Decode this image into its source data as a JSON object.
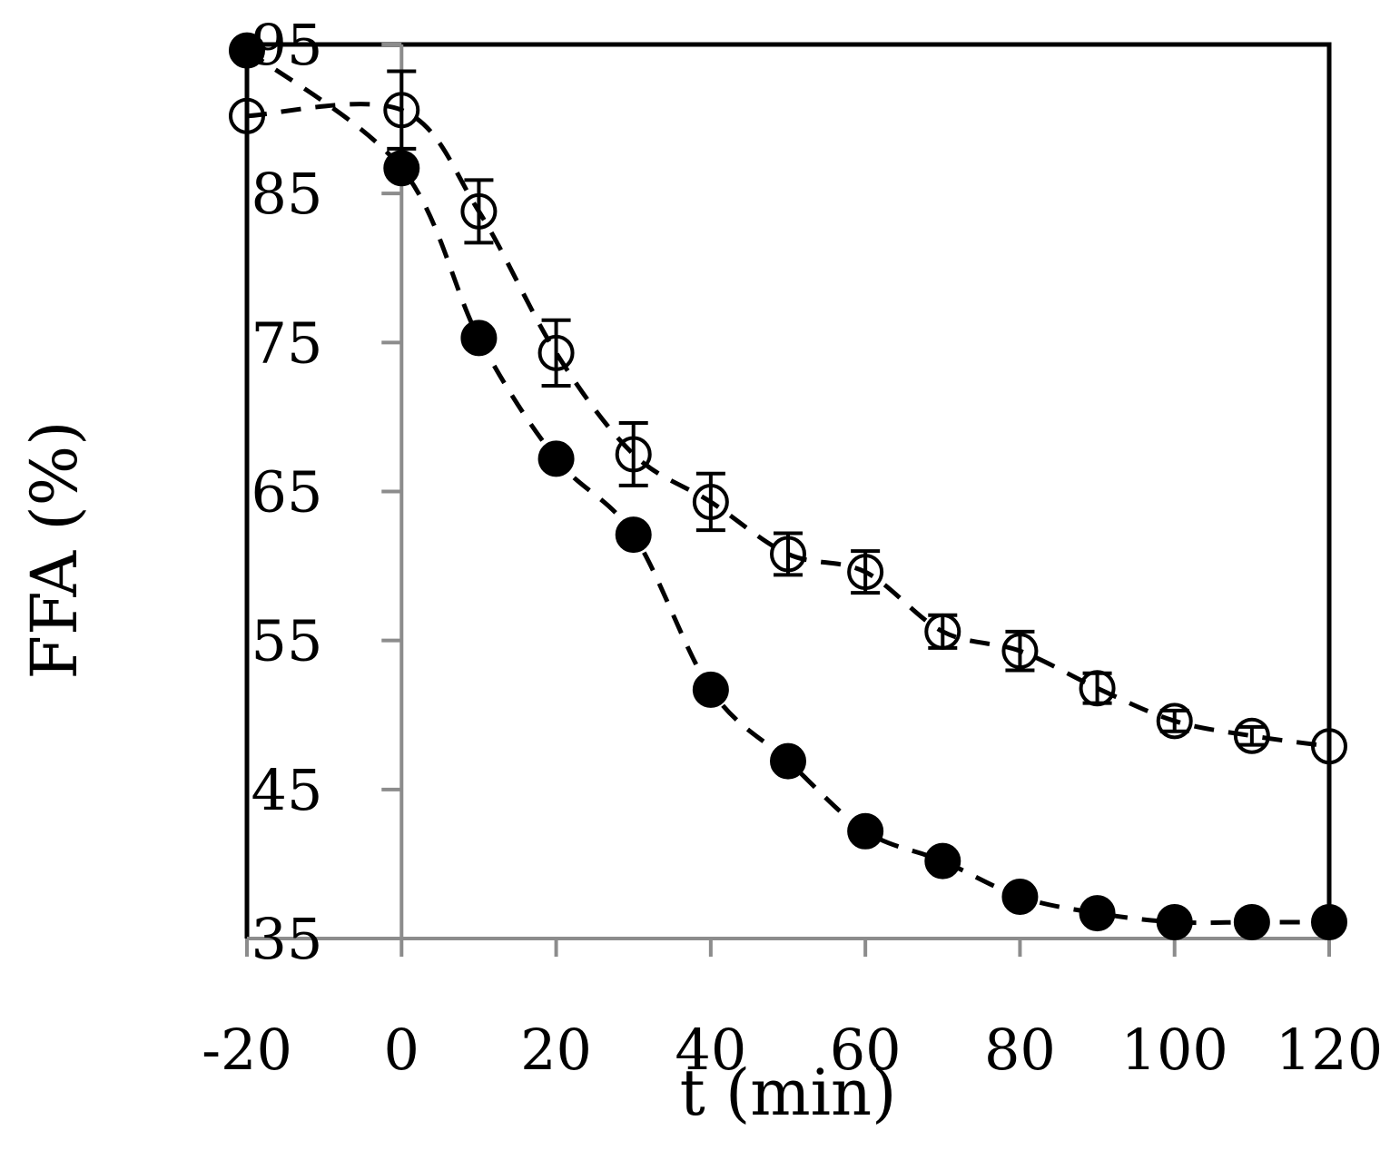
{
  "chart_data": {
    "type": "scatter",
    "title": "",
    "xlabel": "t (min)",
    "ylabel": "FFA (%)",
    "xlim": [
      -20,
      120
    ],
    "ylim": [
      35,
      95
    ],
    "x_ticks": [
      -20,
      0,
      20,
      40,
      60,
      80,
      100,
      120
    ],
    "y_ticks": [
      35,
      45,
      55,
      65,
      75,
      85,
      95
    ],
    "x_tick_labels": [
      "-20",
      "0",
      "20",
      "40",
      "60",
      "80",
      "100",
      "120"
    ],
    "y_tick_labels": [
      "35",
      "45",
      "55",
      "65",
      "75",
      "85",
      "95"
    ],
    "grid": false,
    "legend": false,
    "series": [
      {
        "marker": "open-circle",
        "line": "dashed",
        "color": "#000000",
        "x": [
          -20,
          0,
          10,
          20,
          30,
          40,
          50,
          60,
          70,
          80,
          90,
          100,
          110,
          120
        ],
        "y": [
          90.2,
          90.6,
          83.8,
          74.3,
          67.5,
          64.3,
          60.8,
          59.6,
          55.6,
          54.3,
          51.8,
          49.6,
          48.6,
          47.9
        ],
        "error": [
          0,
          2.6,
          2.1,
          2.2,
          2.1,
          1.9,
          1.4,
          1.4,
          1.1,
          1.3,
          1.0,
          0.7,
          0.6,
          0.0
        ]
      },
      {
        "marker": "filled-circle",
        "line": "dashed",
        "color": "#000000",
        "x": [
          -20,
          0,
          10,
          20,
          30,
          40,
          50,
          60,
          70,
          80,
          90,
          100,
          110,
          120
        ],
        "y": [
          94.6,
          86.7,
          75.3,
          67.2,
          62.1,
          51.7,
          46.9,
          42.2,
          40.2,
          37.8,
          36.7,
          36.1,
          36.1,
          36.1
        ],
        "error": [
          0,
          0,
          0,
          0,
          0,
          0,
          0,
          0,
          0,
          0,
          0,
          0,
          0,
          0
        ]
      }
    ]
  }
}
